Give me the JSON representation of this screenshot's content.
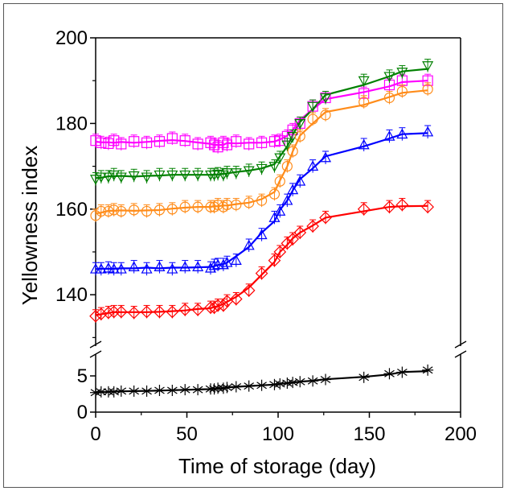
{
  "chart_data": {
    "type": "scatter",
    "xlabel": "Time of storage (day)",
    "ylabel": "Yellowness index",
    "xlim": [
      0,
      200
    ],
    "x_ticks": [
      0,
      50,
      100,
      150,
      200
    ],
    "y_ticks_upper": [
      140,
      160,
      180,
      200
    ],
    "ylim_upper": [
      128,
      200
    ],
    "y_ticks_lower": [
      0,
      5
    ],
    "ylim_lower": [
      0,
      8
    ],
    "axis_break": "y",
    "fit_lines": true,
    "error_bars": true,
    "grid": false,
    "legend": "none",
    "series": [
      {
        "color": "#ff00ff",
        "marker": "square",
        "x": [
          0,
          3,
          7,
          10,
          14,
          21,
          28,
          35,
          42,
          49,
          56,
          63,
          65,
          67,
          70,
          72,
          77,
          84,
          91,
          98,
          101,
          105,
          108,
          112,
          119,
          126,
          147,
          161,
          168,
          182
        ],
        "y": [
          176,
          175.5,
          175.3,
          176,
          175.2,
          175.8,
          175.5,
          175.8,
          176.5,
          176,
          175.2,
          175.5,
          175,
          174.5,
          175.5,
          175,
          175.8,
          175.2,
          175.5,
          175.8,
          176,
          177,
          178.5,
          180,
          184,
          186,
          187,
          189,
          190,
          190
        ]
      },
      {
        "color": "#008000",
        "marker": "triangle-down",
        "x": [
          0,
          3,
          7,
          10,
          14,
          21,
          28,
          35,
          42,
          49,
          56,
          63,
          65,
          67,
          70,
          72,
          77,
          84,
          91,
          98,
          101,
          105,
          108,
          112,
          119,
          126,
          147,
          161,
          168,
          182
        ],
        "y": [
          167,
          167.5,
          167.5,
          168,
          167.5,
          167.8,
          167.5,
          168,
          168,
          168,
          168,
          168,
          168,
          168.2,
          168,
          168.5,
          168.5,
          169,
          169.5,
          170,
          172,
          175,
          177,
          180,
          184,
          186,
          190,
          191,
          192,
          193.5
        ]
      },
      {
        "color": "#ff8c1a",
        "marker": "circle",
        "x": [
          0,
          3,
          7,
          10,
          14,
          21,
          28,
          35,
          42,
          49,
          56,
          63,
          65,
          67,
          70,
          72,
          77,
          84,
          91,
          98,
          101,
          105,
          108,
          112,
          119,
          126,
          147,
          161,
          168,
          182
        ],
        "y": [
          158.5,
          159.5,
          159.5,
          159.8,
          159.5,
          159.8,
          159.5,
          159.8,
          160,
          160.5,
          160.5,
          160.5,
          160.5,
          161,
          160.5,
          161,
          161,
          161.5,
          162,
          163.5,
          166.5,
          170,
          173.5,
          177,
          181,
          182,
          185,
          186,
          187.5,
          188
        ]
      },
      {
        "color": "#0000ff",
        "marker": "triangle-up",
        "x": [
          0,
          3,
          7,
          10,
          14,
          21,
          28,
          35,
          42,
          49,
          56,
          63,
          65,
          67,
          70,
          72,
          77,
          84,
          91,
          98,
          101,
          105,
          108,
          112,
          119,
          126,
          147,
          161,
          168,
          182
        ],
        "y": [
          146,
          146,
          146.2,
          146,
          146,
          146.5,
          146,
          146.5,
          146,
          146.5,
          146.5,
          146.2,
          146.8,
          147,
          147,
          147.5,
          148,
          151.5,
          154,
          158,
          159.5,
          162,
          164.5,
          166.5,
          170,
          172,
          175,
          177,
          177.5,
          178
        ]
      },
      {
        "color": "#ff0000",
        "marker": "diamond",
        "x": [
          0,
          3,
          7,
          10,
          14,
          21,
          28,
          35,
          42,
          49,
          56,
          63,
          65,
          67,
          70,
          72,
          77,
          84,
          91,
          98,
          101,
          105,
          108,
          112,
          119,
          126,
          147,
          161,
          168,
          182
        ],
        "y": [
          135,
          135.5,
          135.8,
          136,
          136,
          135.8,
          136,
          136,
          136,
          136.5,
          136.5,
          137,
          137,
          137.5,
          137.5,
          138.5,
          139,
          141,
          145,
          148,
          150,
          152,
          153,
          154.5,
          156,
          158,
          160,
          160.5,
          161,
          160.5
        ]
      },
      {
        "color": "#000000",
        "marker": "asterisk",
        "x": [
          0,
          3,
          7,
          10,
          14,
          21,
          28,
          35,
          42,
          49,
          56,
          63,
          65,
          67,
          70,
          72,
          77,
          84,
          91,
          98,
          101,
          105,
          108,
          112,
          119,
          126,
          147,
          161,
          168,
          182
        ],
        "y": [
          2.7,
          2.8,
          2.8,
          2.8,
          2.9,
          2.9,
          2.9,
          3.0,
          3.0,
          3.1,
          3.1,
          3.2,
          3.2,
          3.3,
          3.3,
          3.4,
          3.5,
          3.6,
          3.7,
          3.8,
          3.9,
          4.0,
          4.1,
          4.2,
          4.3,
          4.5,
          4.8,
          5.3,
          5.5,
          5.8
        ]
      }
    ]
  }
}
